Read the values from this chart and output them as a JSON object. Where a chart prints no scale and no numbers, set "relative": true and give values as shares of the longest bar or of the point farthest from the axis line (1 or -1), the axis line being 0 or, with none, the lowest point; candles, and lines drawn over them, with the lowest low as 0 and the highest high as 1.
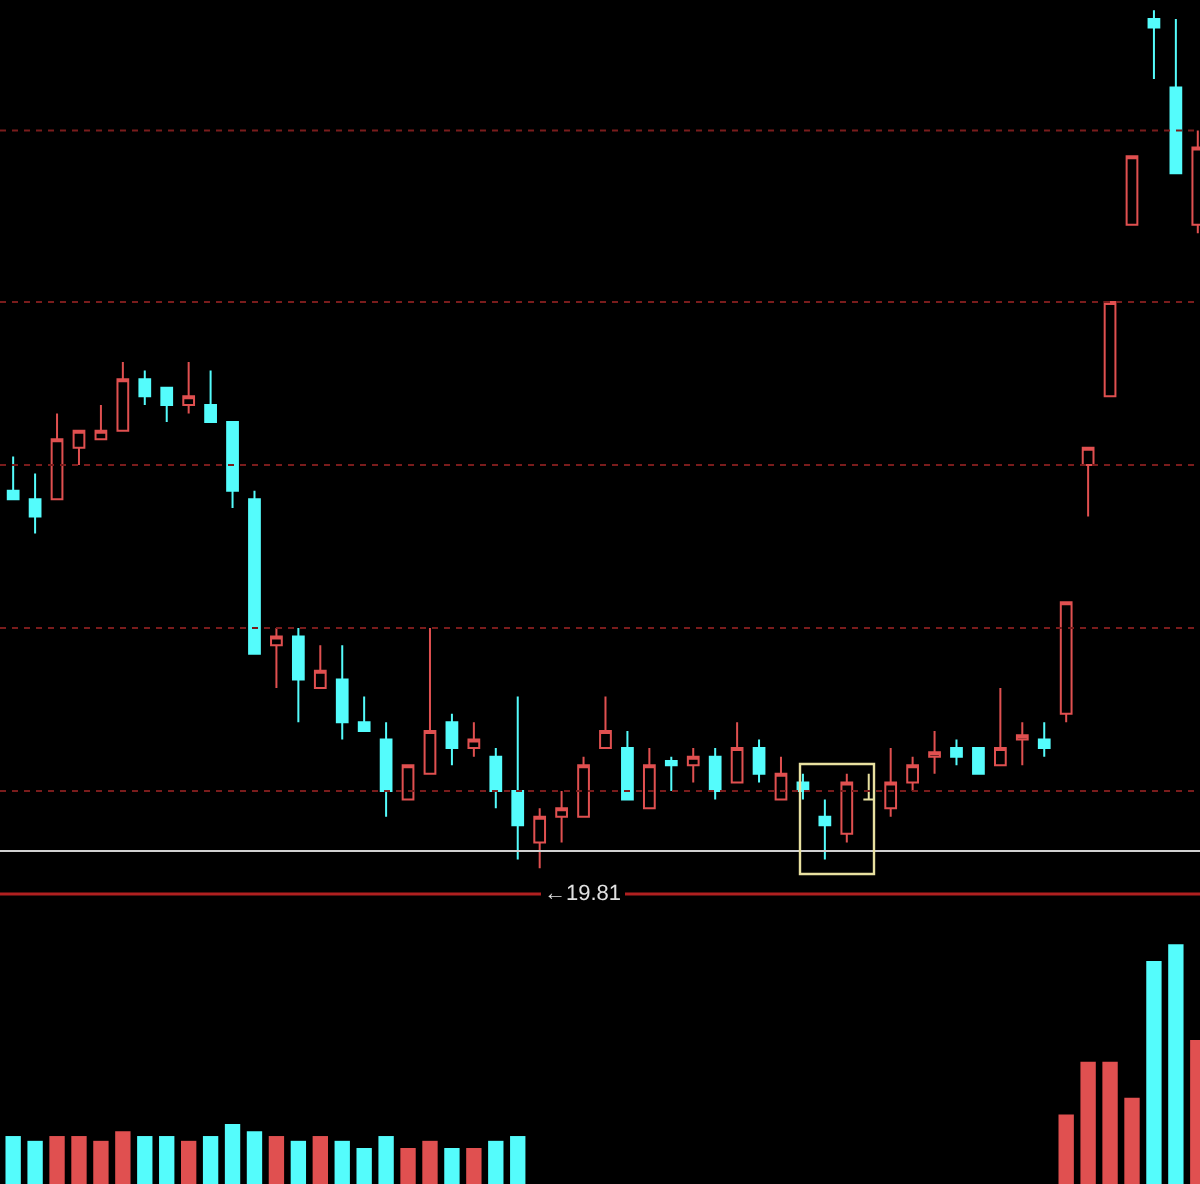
{
  "chart_data": [
    {
      "type": "candlestick",
      "relative": true,
      "categories": [
        null,
        null,
        null,
        null,
        null,
        null,
        null,
        null,
        null,
        null,
        null,
        null,
        null,
        null,
        null,
        null,
        null,
        null,
        null,
        null,
        null,
        null,
        null,
        null,
        null,
        null,
        null,
        null,
        null,
        null,
        null,
        null,
        null,
        null,
        null,
        null,
        null,
        null,
        null,
        null,
        null,
        null,
        null,
        null,
        null,
        null,
        null,
        null,
        null,
        null,
        null,
        null,
        null,
        null,
        null
      ],
      "ohlc": [
        [
          0.44,
          0.48,
          0.43,
          0.43
        ],
        [
          0.43,
          0.46,
          0.39,
          0.41
        ],
        [
          0.43,
          0.53,
          0.43,
          0.5
        ],
        [
          0.49,
          0.51,
          0.47,
          0.51
        ],
        [
          0.5,
          0.54,
          0.5,
          0.51
        ],
        [
          0.51,
          0.59,
          0.51,
          0.57
        ],
        [
          0.57,
          0.58,
          0.54,
          0.55
        ],
        [
          0.56,
          0.56,
          0.52,
          0.54
        ],
        [
          0.54,
          0.59,
          0.53,
          0.55
        ],
        [
          0.54,
          0.58,
          0.52,
          0.52
        ],
        [
          0.52,
          0.52,
          0.42,
          0.44
        ],
        [
          0.43,
          0.44,
          0.25,
          0.25
        ],
        [
          0.26,
          0.28,
          0.21,
          0.27
        ],
        [
          0.27,
          0.28,
          0.17,
          0.22
        ],
        [
          0.21,
          0.26,
          0.21,
          0.23
        ],
        [
          0.22,
          0.26,
          0.15,
          0.17
        ],
        [
          0.17,
          0.2,
          0.16,
          0.16
        ],
        [
          0.15,
          0.17,
          0.06,
          0.09
        ],
        [
          0.08,
          0.12,
          0.08,
          0.12
        ],
        [
          0.11,
          0.28,
          0.11,
          0.16
        ],
        [
          0.17,
          0.18,
          0.12,
          0.14
        ],
        [
          0.14,
          0.17,
          0.13,
          0.15
        ],
        [
          0.13,
          0.14,
          0.07,
          0.09
        ],
        [
          0.09,
          0.2,
          0.01,
          0.05
        ],
        [
          0.03,
          0.07,
          0,
          0.06
        ],
        [
          0.06,
          0.09,
          0.03,
          0.07
        ],
        [
          0.06,
          0.13,
          0.06,
          0.12
        ],
        [
          0.14,
          0.2,
          0.14,
          0.16
        ],
        [
          0.14,
          0.16,
          0.08,
          0.08
        ],
        [
          0.07,
          0.14,
          0.07,
          0.12
        ],
        [
          0.125,
          0.13,
          0.09,
          0.12
        ],
        [
          0.12,
          0.14,
          0.1,
          0.13
        ],
        [
          0.13,
          0.14,
          0.08,
          0.09
        ],
        [
          0.1,
          0.17,
          0.1,
          0.14
        ],
        [
          0.14,
          0.15,
          0.1,
          0.11
        ],
        [
          0.08,
          0.13,
          0.08,
          0.11
        ],
        [
          0.1,
          0.11,
          0.08,
          0.09
        ],
        [
          0.06,
          0.08,
          0.01,
          0.05
        ],
        [
          0.04,
          0.11,
          0.03,
          0.1
        ],
        [
          0.08,
          0.11,
          0.08,
          0.08
        ],
        [
          0.07,
          0.14,
          0.06,
          0.1
        ],
        [
          0.1,
          0.13,
          0.09,
          0.12
        ],
        [
          0.13,
          0.16,
          0.11,
          0.135
        ],
        [
          0.14,
          0.15,
          0.12,
          0.13
        ],
        [
          0.14,
          0.14,
          0.11,
          0.11
        ],
        [
          0.12,
          0.21,
          0.12,
          0.14
        ],
        [
          0.15,
          0.17,
          0.12,
          0.155
        ],
        [
          0.15,
          0.17,
          0.13,
          0.14
        ],
        [
          0.18,
          0.31,
          0.17,
          0.31
        ],
        [
          0.47,
          0.49,
          0.41,
          0.49
        ],
        [
          0.55,
          0.66,
          0.55,
          0.66
        ],
        [
          0.75,
          0.83,
          0.75,
          0.83
        ],
        [
          0.99,
          1,
          0.92,
          0.98
        ],
        [
          0.91,
          0.99,
          0.81,
          0.81
        ],
        [
          0.75,
          0.86,
          0.74,
          0.84
        ]
      ],
      "colors": [
        "#54fcfc",
        "#54fcfc",
        "#e05050",
        "#e05050",
        "#e05050",
        "#e05050",
        "#54fcfc",
        "#54fcfc",
        "#e05050",
        "#54fcfc",
        "#54fcfc",
        "#54fcfc",
        "#e05050",
        "#54fcfc",
        "#e05050",
        "#54fcfc",
        "#54fcfc",
        "#54fcfc",
        "#e05050",
        "#e05050",
        "#54fcfc",
        "#e05050",
        "#54fcfc",
        "#54fcfc",
        "#e05050",
        "#e05050",
        "#e05050",
        "#e05050",
        "#54fcfc",
        "#e05050",
        "#54fcfc",
        "#e05050",
        "#54fcfc",
        "#e05050",
        "#54fcfc",
        "#e05050",
        "#54fcfc",
        "#54fcfc",
        "#e05050",
        "#e8e0a0",
        "#e05050",
        "#e05050",
        "#e05050",
        "#54fcfc",
        "#54fcfc",
        "#e05050",
        "#e05050",
        "#54fcfc",
        "#e05050",
        "#e05050",
        "#e05050",
        "#e05050",
        "#54fcfc",
        "#54fcfc",
        "#e05050"
      ],
      "ref_lines": [
        {
          "axis": "y",
          "value": 0.02,
          "color": "#d0d0d0",
          "line_style": "solid"
        },
        {
          "axis": "y",
          "value": 0.86,
          "color": "#7a1c1c",
          "line_style": "dotted"
        },
        {
          "axis": "y",
          "value": 0.66,
          "color": "#7a1c1c",
          "line_style": "dotted"
        },
        {
          "axis": "y",
          "value": 0.47,
          "color": "#7a1c1c",
          "line_style": "dotted"
        },
        {
          "axis": "y",
          "value": 0.28,
          "color": "#7a1c1c",
          "line_style": "dotted"
        },
        {
          "axis": "y",
          "value": 0.09,
          "color": "#7a1c1c",
          "line_style": "dotted"
        }
      ],
      "annotations": [
        "←19.81"
      ]
    },
    {
      "type": "bar",
      "relative": true,
      "categories": [
        null,
        null,
        null,
        null,
        null,
        null,
        null,
        null,
        null,
        null,
        null,
        null,
        null,
        null,
        null,
        null,
        null,
        null,
        null,
        null,
        null,
        null,
        null,
        null,
        null,
        null,
        null,
        null,
        null,
        null,
        null,
        null,
        null,
        null,
        null,
        null,
        null,
        null,
        null,
        null,
        null,
        null,
        null,
        null,
        null,
        null,
        null,
        null,
        null,
        null,
        null,
        null,
        null,
        null,
        null
      ],
      "values": [
        0.2,
        0.18,
        0.2,
        0.2,
        0.18,
        0.22,
        0.2,
        0.2,
        0.18,
        0.2,
        0.25,
        0.22,
        0.2,
        0.18,
        0.2,
        0.18,
        0.15,
        0.2,
        0.15,
        0.18,
        0.15,
        0.15,
        0.18,
        0.2,
        null,
        null,
        null,
        null,
        null,
        null,
        null,
        null,
        null,
        null,
        null,
        null,
        null,
        null,
        null,
        null,
        null,
        null,
        null,
        null,
        null,
        null,
        null,
        null,
        0.29,
        0.51,
        0.51,
        0.36,
        0.93,
        1,
        0.6
      ],
      "colors": [
        "#54fcfc",
        "#54fcfc",
        "#e05050",
        "#e05050",
        "#e05050",
        "#e05050",
        "#54fcfc",
        "#54fcfc",
        "#e05050",
        "#54fcfc",
        "#54fcfc",
        "#54fcfc",
        "#e05050",
        "#54fcfc",
        "#e05050",
        "#54fcfc",
        "#54fcfc",
        "#54fcfc",
        "#e05050",
        "#e05050",
        "#54fcfc",
        "#e05050",
        "#54fcfc",
        "#54fcfc",
        "#e05050",
        "#e05050",
        "#e05050",
        "#e05050",
        "#54fcfc",
        "#e05050",
        "#54fcfc",
        "#e05050",
        "#54fcfc",
        "#e05050",
        "#54fcfc",
        "#e05050",
        "#54fcfc",
        "#54fcfc",
        "#e05050",
        "#e8e0a0",
        "#e05050",
        "#e05050",
        "#e05050",
        "#54fcfc",
        "#54fcfc",
        "#e05050",
        "#e05050",
        "#54fcfc",
        "#e05050",
        "#e05050",
        "#e05050",
        "#e05050",
        "#54fcfc",
        "#54fcfc",
        "#e05050"
      ]
    }
  ]
}
